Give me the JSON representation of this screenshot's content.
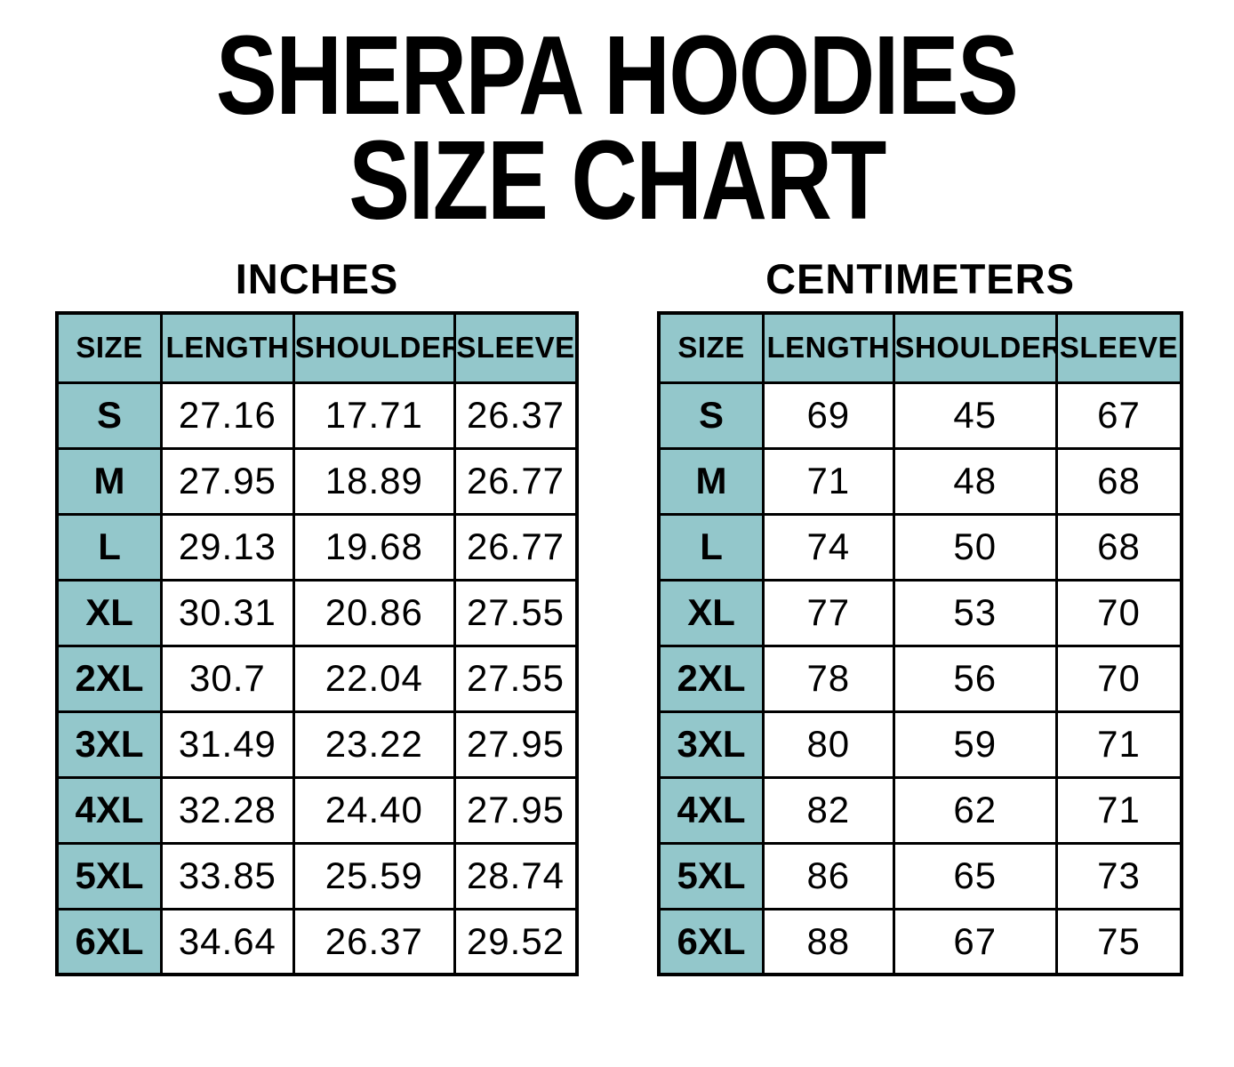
{
  "title": {
    "line1": "SHERPA HOODIES",
    "line2": "SIZE CHART"
  },
  "colors": {
    "header_fill": "#93C7CB",
    "border": "#000000",
    "text": "#000000",
    "background": "#FFFFFF"
  },
  "tables": [
    {
      "unit_label": "INCHES",
      "columns": [
        "SIZE",
        "LENGTH",
        "SHOULDER",
        "SLEEVE"
      ],
      "rows": [
        [
          "S",
          "27.16",
          "17.71",
          "26.37"
        ],
        [
          "M",
          "27.95",
          "18.89",
          "26.77"
        ],
        [
          "L",
          "29.13",
          "19.68",
          "26.77"
        ],
        [
          "XL",
          "30.31",
          "20.86",
          "27.55"
        ],
        [
          "2XL",
          "30.7",
          "22.04",
          "27.55"
        ],
        [
          "3XL",
          "31.49",
          "23.22",
          "27.95"
        ],
        [
          "4XL",
          "32.28",
          "24.40",
          "27.95"
        ],
        [
          "5XL",
          "33.85",
          "25.59",
          "28.74"
        ],
        [
          "6XL",
          "34.64",
          "26.37",
          "29.52"
        ]
      ]
    },
    {
      "unit_label": "CENTIMETERS",
      "columns": [
        "SIZE",
        "LENGTH",
        "SHOULDER",
        "SLEEVE"
      ],
      "rows": [
        [
          "S",
          "69",
          "45",
          "67"
        ],
        [
          "M",
          "71",
          "48",
          "68"
        ],
        [
          "L",
          "74",
          "50",
          "68"
        ],
        [
          "XL",
          "77",
          "53",
          "70"
        ],
        [
          "2XL",
          "78",
          "56",
          "70"
        ],
        [
          "3XL",
          "80",
          "59",
          "71"
        ],
        [
          "4XL",
          "82",
          "62",
          "71"
        ],
        [
          "5XL",
          "86",
          "65",
          "73"
        ],
        [
          "6XL",
          "88",
          "67",
          "75"
        ]
      ]
    }
  ],
  "chart_data": [
    {
      "type": "table",
      "title": "SHERPA HOODIES SIZE CHART — INCHES",
      "columns": [
        "SIZE",
        "LENGTH",
        "SHOULDER",
        "SLEEVE"
      ],
      "rows": [
        [
          "S",
          27.16,
          17.71,
          26.37
        ],
        [
          "M",
          27.95,
          18.89,
          26.77
        ],
        [
          "L",
          29.13,
          19.68,
          26.77
        ],
        [
          "XL",
          30.31,
          20.86,
          27.55
        ],
        [
          "2XL",
          30.7,
          22.04,
          27.55
        ],
        [
          "3XL",
          31.49,
          23.22,
          27.95
        ],
        [
          "4XL",
          32.28,
          24.4,
          27.95
        ],
        [
          "5XL",
          33.85,
          25.59,
          28.74
        ],
        [
          "6XL",
          34.64,
          26.37,
          29.52
        ]
      ]
    },
    {
      "type": "table",
      "title": "SHERPA HOODIES SIZE CHART — CENTIMETERS",
      "columns": [
        "SIZE",
        "LENGTH",
        "SHOULDER",
        "SLEEVE"
      ],
      "rows": [
        [
          "S",
          69,
          45,
          67
        ],
        [
          "M",
          71,
          48,
          68
        ],
        [
          "L",
          74,
          50,
          68
        ],
        [
          "XL",
          77,
          53,
          70
        ],
        [
          "2XL",
          78,
          56,
          70
        ],
        [
          "3XL",
          80,
          59,
          71
        ],
        [
          "4XL",
          82,
          62,
          71
        ],
        [
          "5XL",
          86,
          65,
          73
        ],
        [
          "6XL",
          88,
          67,
          75
        ]
      ]
    }
  ]
}
